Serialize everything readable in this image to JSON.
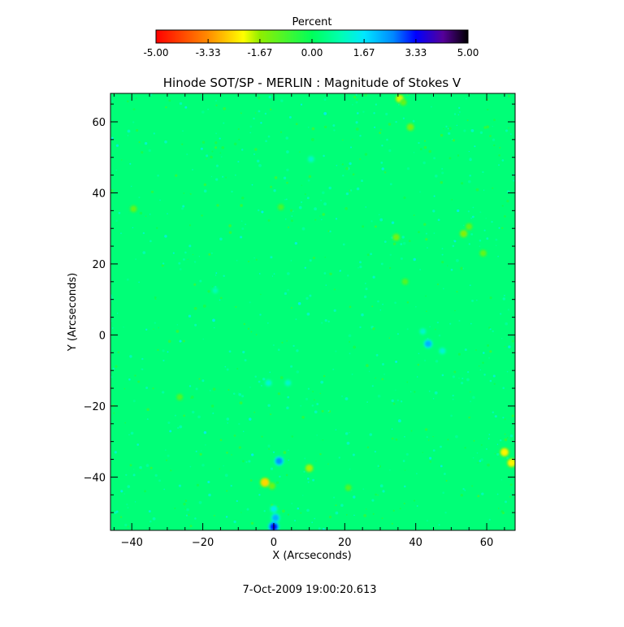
{
  "chart_data": {
    "type": "heatmap",
    "title": "Hinode SOT/SP - MERLIN : Magnitude of Stokes V",
    "xlabel": "X (Arcseconds)",
    "ylabel": "Y (Arcseconds)",
    "xlim": [
      -46,
      68
    ],
    "ylim": [
      -55,
      68
    ],
    "x_ticks": [
      -40,
      -20,
      0,
      20,
      40,
      60
    ],
    "y_ticks": [
      -40,
      -20,
      0,
      20,
      40,
      60
    ],
    "x_minor_step": 5,
    "y_minor_step": 5,
    "background_value": 0.3,
    "features": [
      {
        "x": 35.5,
        "y": 66.5,
        "value": -2.0
      },
      {
        "x": 36.5,
        "y": 65.5,
        "value": -1.2
      },
      {
        "x": 38.5,
        "y": 58.5,
        "value": -1.5
      },
      {
        "x": -39.5,
        "y": 35.5,
        "value": -1.2
      },
      {
        "x": 34.5,
        "y": 27.5,
        "value": -1.4
      },
      {
        "x": 53.5,
        "y": 28.5,
        "value": -1.6
      },
      {
        "x": 55.0,
        "y": 30.5,
        "value": -1.2
      },
      {
        "x": 59.0,
        "y": 23.0,
        "value": -1.2
      },
      {
        "x": 37.0,
        "y": 15.0,
        "value": -1.0
      },
      {
        "x": 43.5,
        "y": -2.5,
        "value": 2.2
      },
      {
        "x": 47.5,
        "y": -4.5,
        "value": 1.3
      },
      {
        "x": 42.0,
        "y": 1.0,
        "value": 1.2
      },
      {
        "x": -26.5,
        "y": -17.5,
        "value": -1.0
      },
      {
        "x": -1.5,
        "y": -13.5,
        "value": 1.3
      },
      {
        "x": 4.0,
        "y": -13.5,
        "value": 1.2
      },
      {
        "x": -2.5,
        "y": -41.5,
        "value": -2.6
      },
      {
        "x": -0.5,
        "y": -42.5,
        "value": -1.3
      },
      {
        "x": 10.0,
        "y": -37.5,
        "value": -1.8
      },
      {
        "x": 1.5,
        "y": -35.5,
        "value": 2.5
      },
      {
        "x": 0.0,
        "y": -54.0,
        "value": 3.2
      },
      {
        "x": 0.5,
        "y": -51.5,
        "value": 2.2
      },
      {
        "x": 0.0,
        "y": -49.0,
        "value": 1.5
      },
      {
        "x": 65.0,
        "y": -33.0,
        "value": -2.3
      },
      {
        "x": 67.0,
        "y": -36.0,
        "value": -2.3
      },
      {
        "x": 21.0,
        "y": -43.0,
        "value": -1.0
      },
      {
        "x": 10.5,
        "y": 49.5,
        "value": 1.2
      },
      {
        "x": 2.0,
        "y": 36.0,
        "value": -0.9
      },
      {
        "x": -16.5,
        "y": 12.5,
        "value": 1.0
      }
    ]
  },
  "colorbar": {
    "title": "Percent",
    "min": -5.0,
    "max": 5.0,
    "tick_labels": [
      "-5.00",
      "-3.33",
      "-1.67",
      "0.00",
      "1.67",
      "3.33",
      "5.00"
    ],
    "tick_values": [
      -5.0,
      -3.33,
      -1.67,
      0.0,
      1.67,
      3.33,
      5.0
    ],
    "colors": [
      {
        "v": -5.0,
        "c": "#ff0000"
      },
      {
        "v": -3.33,
        "c": "#ff8c00"
      },
      {
        "v": -2.2,
        "c": "#ffff00"
      },
      {
        "v": -1.67,
        "c": "#90ee00"
      },
      {
        "v": 0.0,
        "c": "#00ff5a"
      },
      {
        "v": 0.9,
        "c": "#00ffb0"
      },
      {
        "v": 1.67,
        "c": "#00e8ff"
      },
      {
        "v": 2.6,
        "c": "#0088ff"
      },
      {
        "v": 3.33,
        "c": "#0000ff"
      },
      {
        "v": 4.2,
        "c": "#550099"
      },
      {
        "v": 5.0,
        "c": "#000000"
      }
    ]
  },
  "timestamp": "7-Oct-2009 19:00:20.613"
}
